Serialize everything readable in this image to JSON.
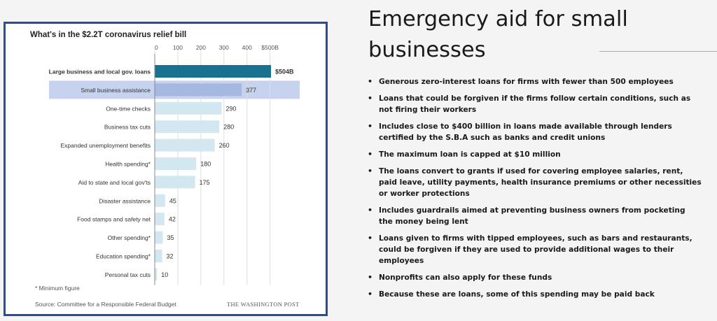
{
  "chart_data": {
    "type": "bar",
    "orientation": "horizontal",
    "title": "What's in the $2.2T coronavirus relief bill",
    "categories": [
      "Large business and local gov. loans",
      "Small business assistance",
      "One-time checks",
      "Business tax cuts",
      "Expanded unemployment benefits",
      "Health spending*",
      "Aid to state and local gov'ts",
      "Disaster assistance",
      "Food stamps and safety net",
      "Other spending*",
      "Education spending*",
      "Personal tax cuts"
    ],
    "values": [
      504,
      377,
      290,
      280,
      260,
      180,
      175,
      45,
      42,
      35,
      32,
      10
    ],
    "value_labels": [
      "$504B",
      "377",
      "290",
      "280",
      "260",
      "180",
      "175",
      "45",
      "42",
      "35",
      "32",
      "10"
    ],
    "x_ticks": [
      "0",
      "100",
      "200",
      "300",
      "400",
      "$500B"
    ],
    "xlim": [
      0,
      504
    ],
    "grid": true,
    "highlighted_categories": [
      "Large business and local gov. loans",
      "Small business assistance"
    ],
    "footnote": "* Minimum figure",
    "source": "Source: Committee for a Responsible Federal Budget",
    "publisher": "THE WASHINGTON POST",
    "colors": {
      "primary_bar": "#17718f",
      "highlight_bar": "#a4b8e0",
      "highlight_band": "#c7d3ee",
      "default_bar": "#d3e7f1",
      "frame_border": "#2a4d9b"
    }
  },
  "slide": {
    "title": "Emergency aid for small businesses",
    "bullets": [
      "Generous zero-interest loans for firms with fewer than 500 employees",
      "Loans that could be forgiven if the firms follow certain conditions, such as not firing their workers",
      "Includes close to $400 billion in loans made available through lenders certified by the S.B.A such as banks and credit unions",
      "The maximum loan is capped at $10 million",
      "The loans convert to grants if used for covering employee salaries, rent, paid leave, utility payments, health insurance premiums or other necessities or worker protections",
      "Includes guardrails aimed at preventing business owners from pocketing the money being lent",
      "Loans given to firms with tipped employees, such as bars and restaurants, could be forgiven if they are used to provide additional wages to their employees",
      "Nonprofits can also apply for these funds",
      "Because these are loans, some of this spending may be paid back"
    ]
  }
}
